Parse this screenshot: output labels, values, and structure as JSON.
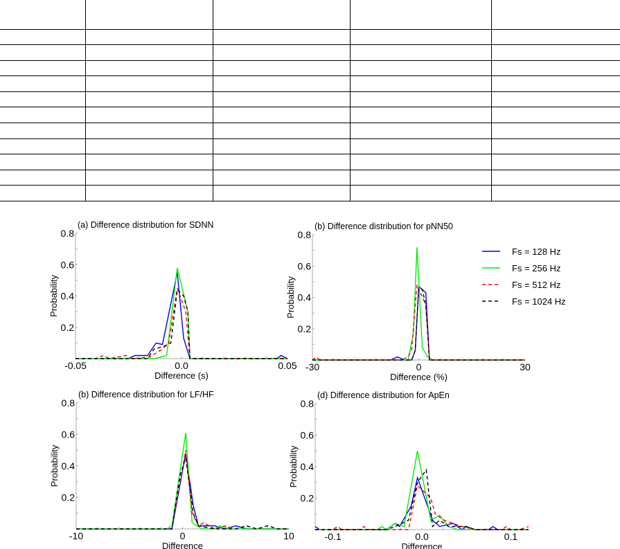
{
  "table": {
    "rows": 12,
    "columns": 5
  },
  "legend": [
    {
      "label": "Fs = 128 Hz",
      "color": "#0000ff",
      "dash": false
    },
    {
      "label": "Fs = 256 Hz",
      "color": "#00ee00",
      "dash": false
    },
    {
      "label": "Fs = 512 Hz",
      "color": "#ff0000",
      "dash": true
    },
    {
      "label": "Fs = 1024 Hz",
      "color": "#000000",
      "dash": true
    }
  ],
  "chart_data": [
    {
      "type": "line",
      "title": "(a) Difference distribution for SDNN",
      "xlabel": "Difference (s)",
      "ylabel": "Probability",
      "xlim": [
        -0.05,
        0.05
      ],
      "ylim": [
        0,
        0.8
      ],
      "xticks": [
        -0.05,
        0.0,
        0.05
      ],
      "xtick_labels": [
        "-0.05",
        "0.0",
        "0.05"
      ],
      "yticks": [
        0.2,
        0.4,
        0.6,
        0.8
      ],
      "ytick_labels": [
        "0.2",
        "0.4",
        "0.6",
        "0.8"
      ],
      "series": [
        {
          "name": "Fs = 128 Hz",
          "points": [
            [
              -0.05,
              0
            ],
            [
              -0.025,
              0
            ],
            [
              -0.022,
              0.02
            ],
            [
              -0.016,
              0.02
            ],
            [
              -0.012,
              0.1
            ],
            [
              -0.009,
              0.09
            ],
            [
              -0.002,
              0.55
            ],
            [
              0.001,
              0.13
            ],
            [
              0.004,
              0
            ],
            [
              0.045,
              0
            ],
            [
              0.047,
              0.02
            ],
            [
              0.05,
              0
            ]
          ]
        },
        {
          "name": "Fs = 256 Hz",
          "points": [
            [
              -0.05,
              0
            ],
            [
              -0.015,
              0
            ],
            [
              -0.013,
              0
            ],
            [
              -0.007,
              0.02
            ],
            [
              -0.002,
              0.58
            ],
            [
              0.003,
              0.3
            ],
            [
              0.004,
              0
            ],
            [
              0.05,
              0
            ]
          ]
        },
        {
          "name": "Fs = 512 Hz",
          "points": [
            [
              -0.05,
              0
            ],
            [
              -0.04,
              0
            ],
            [
              -0.037,
              0.02
            ],
            [
              -0.034,
              0
            ],
            [
              -0.03,
              0.01
            ],
            [
              -0.026,
              0.02
            ],
            [
              -0.023,
              0
            ],
            [
              -0.015,
              0.01
            ],
            [
              -0.009,
              0.06
            ],
            [
              -0.006,
              0.1
            ],
            [
              -0.002,
              0.45
            ],
            [
              0.002,
              0.3
            ],
            [
              0.004,
              0
            ],
            [
              0.05,
              0
            ]
          ]
        },
        {
          "name": "Fs = 1024 Hz",
          "points": [
            [
              -0.05,
              0
            ],
            [
              -0.016,
              0
            ],
            [
              -0.013,
              0.06
            ],
            [
              -0.008,
              0.08
            ],
            [
              -0.005,
              0.1
            ],
            [
              -0.002,
              0.44
            ],
            [
              0.001,
              0.4
            ],
            [
              0.003,
              0.3
            ],
            [
              0.004,
              0
            ],
            [
              0.05,
              0
            ]
          ]
        }
      ]
    },
    {
      "type": "line",
      "title": "(b) Difference distribution for pNN50",
      "xlabel": "Difference (%)",
      "ylabel": "Probability",
      "xlim": [
        -30,
        30
      ],
      "ylim": [
        0,
        0.8
      ],
      "xticks": [
        -30,
        0,
        30
      ],
      "xtick_labels": [
        "-30",
        "0",
        "30"
      ],
      "yticks": [
        0.2,
        0.4,
        0.6,
        0.8
      ],
      "ytick_labels": [
        "0.2",
        "0.4",
        "0.6",
        "0.8"
      ],
      "series": [
        {
          "name": "Fs = 128 Hz",
          "points": [
            [
              -30,
              0
            ],
            [
              -8,
              0
            ],
            [
              -6,
              0.02
            ],
            [
              -4,
              0
            ],
            [
              -2,
              0
            ],
            [
              -1,
              0.06
            ],
            [
              0,
              0.47
            ],
            [
              2,
              0.43
            ],
            [
              3,
              0
            ],
            [
              30,
              0
            ]
          ]
        },
        {
          "name": "Fs = 256 Hz",
          "points": [
            [
              -30,
              0
            ],
            [
              -3,
              0
            ],
            [
              -1.5,
              0.17
            ],
            [
              -0.5,
              0.72
            ],
            [
              1,
              0.08
            ],
            [
              2.5,
              0.02
            ],
            [
              4,
              0
            ],
            [
              30,
              0
            ]
          ]
        },
        {
          "name": "Fs = 512 Hz",
          "points": [
            [
              -30,
              0
            ],
            [
              -29,
              0.02
            ],
            [
              -28,
              0
            ],
            [
              -5,
              0
            ],
            [
              -3,
              0.02
            ],
            [
              -2,
              0.07
            ],
            [
              -0.5,
              0.48
            ],
            [
              2,
              0.35
            ],
            [
              3,
              0
            ],
            [
              30,
              0
            ]
          ]
        },
        {
          "name": "Fs = 1024 Hz",
          "points": [
            [
              -30,
              0
            ],
            [
              -2,
              0
            ],
            [
              -1,
              0.06
            ],
            [
              0,
              0.46
            ],
            [
              1,
              0.45
            ],
            [
              2,
              0.35
            ],
            [
              3,
              0
            ],
            [
              30,
              0
            ]
          ]
        }
      ]
    },
    {
      "type": "line",
      "title": "(b) Difference distribution for LF/HF",
      "xlabel": "Difference",
      "ylabel": "Probability",
      "xlim": [
        -10,
        10
      ],
      "ylim": [
        0,
        0.8
      ],
      "xticks": [
        -10,
        0,
        10
      ],
      "xtick_labels": [
        "-10",
        "0",
        "10"
      ],
      "yticks": [
        0.2,
        0.4,
        0.6,
        0.8
      ],
      "ytick_labels": [
        "0.2",
        "0.4",
        "0.6",
        "0.8"
      ],
      "series": [
        {
          "name": "Fs = 128 Hz",
          "points": [
            [
              -10,
              0
            ],
            [
              -1,
              0
            ],
            [
              0.3,
              0.48
            ],
            [
              1,
              0.15
            ],
            [
              1.5,
              0.02
            ],
            [
              3,
              0.02
            ],
            [
              4,
              0
            ],
            [
              5,
              0.02
            ],
            [
              6,
              0
            ],
            [
              10,
              0
            ]
          ]
        },
        {
          "name": "Fs = 256 Hz",
          "points": [
            [
              -10,
              0
            ],
            [
              -1.5,
              0
            ],
            [
              -1,
              0.02
            ],
            [
              0.3,
              0.61
            ],
            [
              0.9,
              0.04
            ],
            [
              1.8,
              0
            ],
            [
              3,
              0
            ],
            [
              3.5,
              0.02
            ],
            [
              4.5,
              0
            ],
            [
              10,
              0
            ]
          ]
        },
        {
          "name": "Fs = 512 Hz",
          "points": [
            [
              -10,
              0
            ],
            [
              -1,
              0
            ],
            [
              0.3,
              0.5
            ],
            [
              0.9,
              0.1
            ],
            [
              1.5,
              0.02
            ],
            [
              2,
              0.04
            ],
            [
              3,
              0
            ],
            [
              4,
              0.02
            ],
            [
              5,
              0
            ],
            [
              6,
              0.02
            ],
            [
              7,
              0
            ],
            [
              8,
              0.02
            ],
            [
              9,
              0
            ],
            [
              10,
              0
            ]
          ]
        },
        {
          "name": "Fs = 1024 Hz",
          "points": [
            [
              -10,
              0
            ],
            [
              -1,
              0
            ],
            [
              -0.2,
              0.35
            ],
            [
              0.3,
              0.45
            ],
            [
              1,
              0.1
            ],
            [
              1.5,
              0.02
            ],
            [
              3,
              0
            ],
            [
              5,
              0
            ],
            [
              6,
              0.02
            ],
            [
              7,
              0
            ],
            [
              8,
              0.02
            ],
            [
              9,
              0
            ],
            [
              10,
              0
            ]
          ]
        }
      ]
    },
    {
      "type": "line",
      "title": "(d) Difference distribution for ApEn",
      "xlabel": "Difference",
      "ylabel": "Probability",
      "xlim": [
        -0.12,
        0.12
      ],
      "ylim": [
        0,
        0.8
      ],
      "xticks": [
        -0.1,
        0.0,
        0.1
      ],
      "xtick_labels": [
        "-0.1",
        "0.0",
        "0.1"
      ],
      "yticks": [
        0.2,
        0.4,
        0.6,
        0.8
      ],
      "ytick_labels": [
        "0.2",
        "0.4",
        "0.6",
        "0.8"
      ],
      "series": [
        {
          "name": "Fs = 128 Hz",
          "points": [
            [
              -0.12,
              0.02
            ],
            [
              -0.115,
              0
            ],
            [
              -0.04,
              0
            ],
            [
              -0.03,
              0.04
            ],
            [
              -0.025,
              0.02
            ],
            [
              -0.012,
              0.15
            ],
            [
              -0.005,
              0.33
            ],
            [
              0.012,
              0.06
            ],
            [
              0.02,
              0.02
            ],
            [
              0.035,
              0.04
            ],
            [
              0.045,
              0
            ],
            [
              0.05,
              0.02
            ],
            [
              0.06,
              0
            ],
            [
              0.075,
              0
            ],
            [
              0.08,
              0.02
            ],
            [
              0.085,
              0
            ],
            [
              0.12,
              0
            ]
          ]
        },
        {
          "name": "Fs = 256 Hz",
          "points": [
            [
              -0.12,
              0
            ],
            [
              -0.05,
              0
            ],
            [
              -0.045,
              0.02
            ],
            [
              -0.04,
              0
            ],
            [
              -0.03,
              0.04
            ],
            [
              -0.02,
              0.02
            ],
            [
              -0.005,
              0.5
            ],
            [
              0.01,
              0.06
            ],
            [
              0.02,
              0.09
            ],
            [
              0.03,
              0.02
            ],
            [
              0.04,
              0
            ],
            [
              0.12,
              0
            ]
          ]
        },
        {
          "name": "Fs = 512 Hz",
          "points": [
            [
              -0.12,
              0
            ],
            [
              -0.1,
              0
            ],
            [
              -0.095,
              0.02
            ],
            [
              -0.09,
              0
            ],
            [
              -0.07,
              0
            ],
            [
              -0.065,
              0.02
            ],
            [
              -0.06,
              0
            ],
            [
              -0.015,
              0
            ],
            [
              -0.005,
              0.28
            ],
            [
              0.01,
              0.2
            ],
            [
              0.015,
              0.1
            ],
            [
              0.025,
              0.06
            ],
            [
              0.035,
              0.04
            ],
            [
              0.045,
              0.02
            ],
            [
              0.06,
              0
            ],
            [
              0.09,
              0
            ],
            [
              0.095,
              0.02
            ],
            [
              0.1,
              0
            ],
            [
              0.11,
              0
            ],
            [
              0.12,
              0.02
            ]
          ]
        },
        {
          "name": "Fs = 1024 Hz",
          "points": [
            [
              -0.12,
              0
            ],
            [
              -0.04,
              0
            ],
            [
              -0.03,
              0.02
            ],
            [
              -0.015,
              0.06
            ],
            [
              -0.005,
              0.3
            ],
            [
              0.005,
              0.38
            ],
            [
              0.012,
              0.02
            ],
            [
              0.02,
              0.06
            ],
            [
              0.03,
              0.02
            ],
            [
              0.05,
              0.02
            ],
            [
              0.06,
              0
            ],
            [
              0.12,
              0
            ]
          ]
        }
      ]
    }
  ]
}
